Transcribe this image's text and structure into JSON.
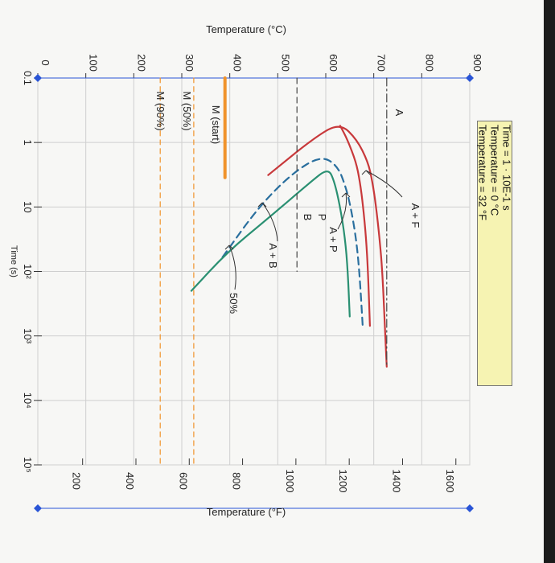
{
  "chart_data": {
    "type": "line",
    "orientation": "image rotated 90 degrees clockwise; time axis runs top to bottom, temperature increases to the left",
    "y_axis_left": {
      "label": "Temperature (°C)",
      "range": [
        0,
        900
      ],
      "ticks": [
        "900",
        "800",
        "700",
        "600",
        "500",
        "400",
        "300",
        "200",
        "100",
        "0"
      ]
    },
    "y_axis_right": {
      "label": "Temperature (°F)",
      "ticks": [
        "1600",
        "1400",
        "1200",
        "1000",
        "800",
        "600",
        "400",
        "200"
      ]
    },
    "x_axis": {
      "label": "Time (s)",
      "scale": "log",
      "range": [
        0.1,
        100000
      ],
      "ticks": [
        "0.1",
        "1",
        "10",
        "10²",
        "10³",
        "10⁴",
        "10⁵"
      ]
    },
    "grid": true,
    "info_box": [
      "Time = 1 · 10E-1 s",
      "Temperature = 0 °C",
      "Temperature = 32 °F"
    ],
    "region_labels": [
      "A",
      "A + F",
      "A + P",
      "P",
      "B",
      "A + B",
      "50%",
      "M (start)",
      "M (50%)",
      "M (90%)"
    ],
    "series": [
      {
        "style": "red solid",
        "color": "#c8393b",
        "points": [
          [
            3.2,
            480
          ],
          [
            0.8,
            580
          ],
          [
            0.5,
            630
          ],
          [
            0.9,
            665
          ],
          [
            2,
            688
          ],
          [
            4,
            697
          ],
          [
            10,
            705
          ],
          [
            30,
            712
          ],
          [
            100,
            718
          ],
          [
            1000,
            724
          ],
          [
            3000,
            727
          ]
        ]
      },
      {
        "style": "red solid",
        "color": "#c8393b",
        "points": [
          [
            0.55,
            630
          ],
          [
            0.9,
            645
          ],
          [
            2,
            663
          ],
          [
            4,
            671
          ],
          [
            10,
            678
          ],
          [
            30,
            684
          ],
          [
            100,
            688
          ],
          [
            700,
            692
          ]
        ]
      },
      {
        "style": "blue dashed",
        "color": "#2a6f9e",
        "points": [
          [
            60,
            385
          ],
          [
            10,
            460
          ],
          [
            3,
            530
          ],
          [
            1.6,
            590
          ],
          [
            2.3,
            625
          ],
          [
            5,
            642
          ],
          [
            10,
            652
          ],
          [
            30,
            663
          ],
          [
            100,
            670
          ],
          [
            700,
            677
          ]
        ]
      },
      {
        "style": "green solid",
        "color": "#2a9072",
        "points": [
          [
            200,
            320
          ],
          [
            50,
            395
          ],
          [
            15,
            480
          ],
          [
            4,
            570
          ],
          [
            2.5,
            605
          ],
          [
            4,
            618
          ],
          [
            10,
            630
          ],
          [
            30,
            640
          ],
          [
            100,
            646
          ],
          [
            500,
            650
          ]
        ]
      },
      {
        "style": "orange solid",
        "color": "#f0932b",
        "points": [
          [
            0.1,
            390
          ],
          [
            3.5,
            390
          ]
        ]
      },
      {
        "style": "dash-dot black",
        "color": "#444444",
        "points": [
          [
            0.1,
            727
          ],
          [
            3000,
            727
          ]
        ]
      },
      {
        "style": "dashed black",
        "color": "#444444",
        "points": [
          [
            0.1,
            540
          ],
          [
            100,
            540
          ]
        ]
      },
      {
        "style": "dashed orange",
        "color": "#f0932b",
        "points": [
          [
            0.1,
            325
          ],
          [
            100000,
            325
          ]
        ]
      },
      {
        "style": "dashed orange",
        "color": "#f0932b",
        "points": [
          [
            0.1,
            255
          ],
          [
            100000,
            255
          ]
        ]
      }
    ]
  }
}
